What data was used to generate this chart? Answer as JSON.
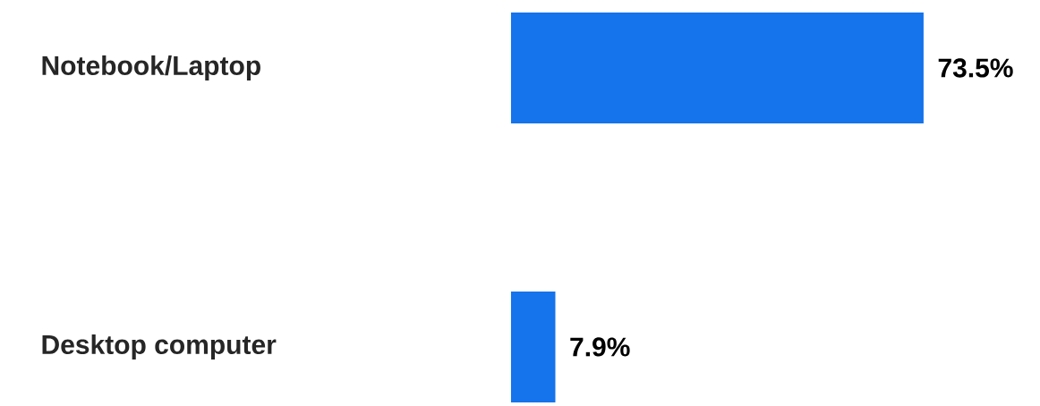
{
  "chart_data": {
    "type": "bar",
    "orientation": "horizontal",
    "categories": [
      "Notebook/Laptop",
      "Desktop computer"
    ],
    "values": [
      73.5,
      7.9
    ],
    "value_labels": [
      "73.5%",
      "7.9%"
    ],
    "color": "#1573eb"
  }
}
